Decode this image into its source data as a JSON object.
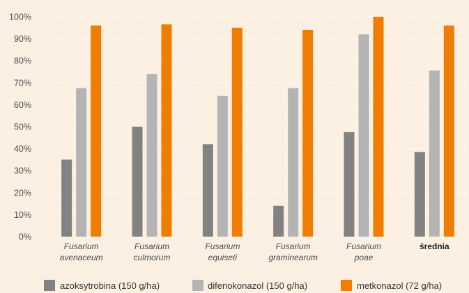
{
  "chart_data": {
    "type": "bar",
    "title": "",
    "xlabel": "",
    "ylabel": "",
    "ylim": [
      0,
      100
    ],
    "y_tick_step": 10,
    "y_tick_suffix": "%",
    "grid": "horizontal-dotted",
    "legend_position": "bottom",
    "categories": [
      {
        "lines": [
          "Fusarium",
          "avenaceum"
        ],
        "style": "italic"
      },
      {
        "lines": [
          "Fusarium",
          "culmorum"
        ],
        "style": "italic"
      },
      {
        "lines": [
          "Fusarium",
          "equiseti"
        ],
        "style": "italic"
      },
      {
        "lines": [
          "Fusarium",
          "graminearum"
        ],
        "style": "italic"
      },
      {
        "lines": [
          "Fusarium",
          "poae"
        ],
        "style": "italic"
      },
      {
        "lines": [
          "średnia"
        ],
        "style": "bold"
      }
    ],
    "series": [
      {
        "name": "azoksytrobina (150 g/ha)",
        "color": "#828282",
        "values": [
          35,
          50,
          42,
          14,
          47.5,
          38.5
        ]
      },
      {
        "name": "difenokonazol (150 g/ha)",
        "color": "#b4b4b4",
        "values": [
          67.5,
          74,
          64,
          67.5,
          92,
          75.5
        ]
      },
      {
        "name": "metkonazol (72 g/ha)",
        "color": "#ef7d00",
        "values": [
          96,
          96.5,
          95,
          94,
          100,
          96
        ]
      }
    ]
  }
}
